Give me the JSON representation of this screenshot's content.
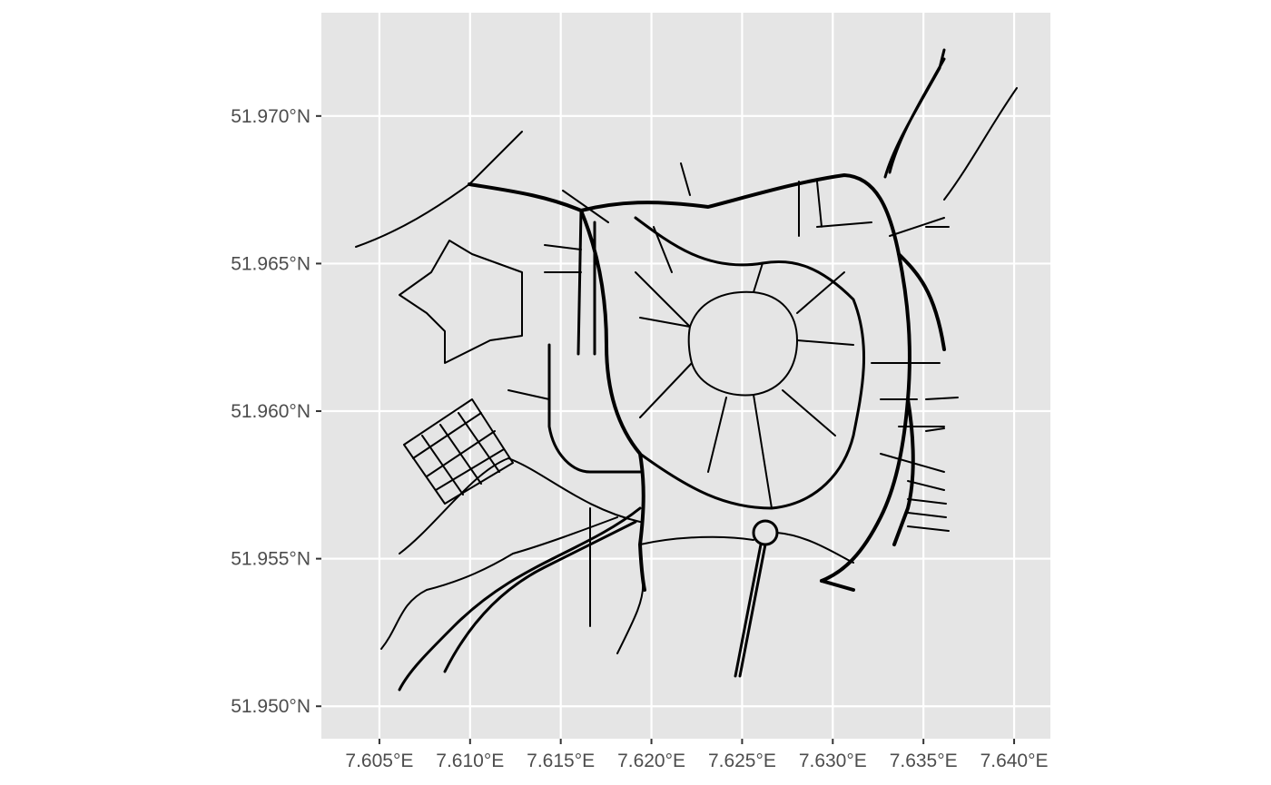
{
  "map": {
    "background_color": "#e5e5e5",
    "grid_color": "#ffffff",
    "road_color": "#000000",
    "x_axis": {
      "ticks": [
        {
          "value": 7.605,
          "label": "7.605°E"
        },
        {
          "value": 7.61,
          "label": "7.610°E"
        },
        {
          "value": 7.615,
          "label": "7.615°E"
        },
        {
          "value": 7.62,
          "label": "7.620°E"
        },
        {
          "value": 7.625,
          "label": "7.625°E"
        },
        {
          "value": 7.63,
          "label": "7.630°E"
        },
        {
          "value": 7.635,
          "label": "7.635°E"
        },
        {
          "value": 7.64,
          "label": "7.640°E"
        }
      ],
      "range": [
        7.6018,
        7.642
      ]
    },
    "y_axis": {
      "ticks": [
        {
          "value": 51.95,
          "label": "51.950°N"
        },
        {
          "value": 51.955,
          "label": "51.955°N"
        },
        {
          "value": 51.96,
          "label": "51.960°N"
        },
        {
          "value": 51.965,
          "label": "51.965°N"
        },
        {
          "value": 51.97,
          "label": "51.970°N"
        }
      ],
      "range": [
        51.9489,
        51.9735
      ]
    },
    "grid": true,
    "content": "street network with ring road around old town center"
  }
}
